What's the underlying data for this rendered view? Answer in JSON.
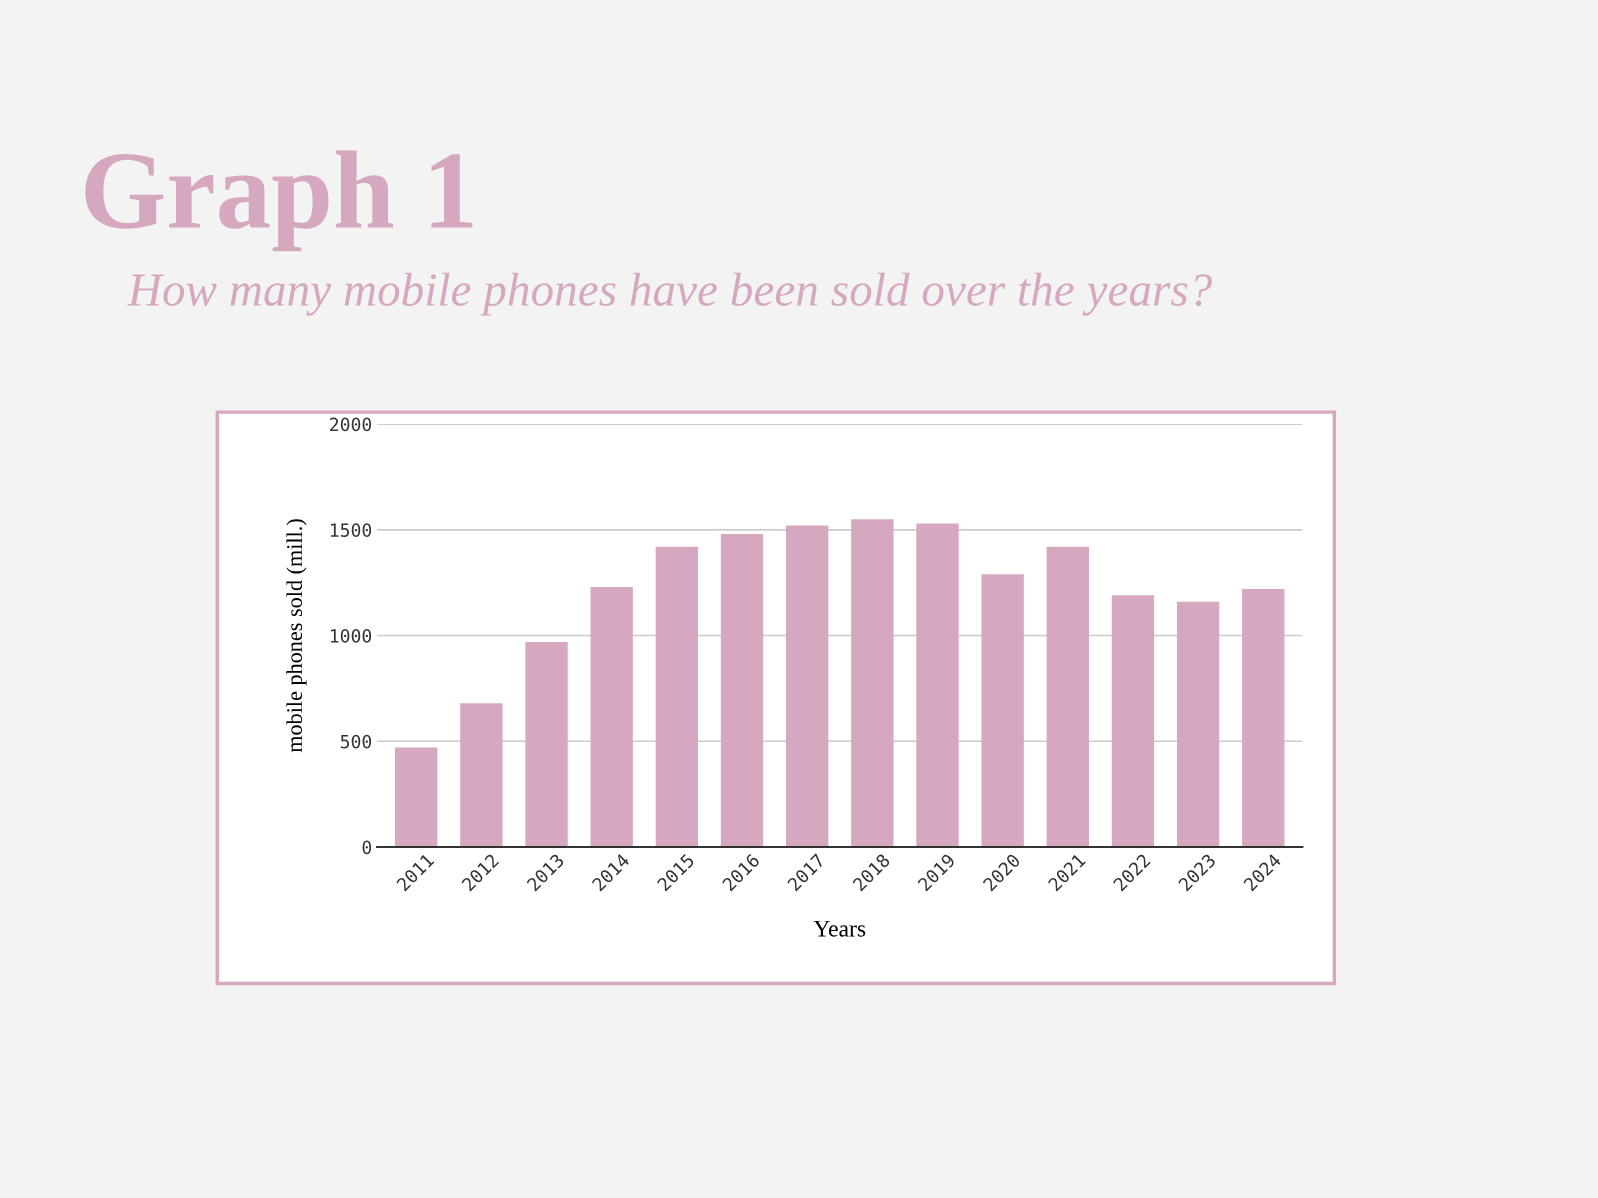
{
  "chart_data": {
    "type": "bar",
    "title": "Graph 1",
    "subtitle": "How many mobile phones have been sold over the years?",
    "xlabel": "Years",
    "ylabel": "mobile phones sold (mill.)",
    "categories": [
      "2011",
      "2012",
      "2013",
      "2014",
      "2015",
      "2016",
      "2017",
      "2018",
      "2019",
      "2020",
      "2021",
      "2022",
      "2023",
      "2024"
    ],
    "values": [
      470,
      680,
      970,
      1230,
      1420,
      1480,
      1520,
      1550,
      1530,
      1290,
      1420,
      1190,
      1160,
      1220
    ],
    "color": "#d5a8bf",
    "ylim": [
      0,
      2000
    ],
    "yticks": [
      0,
      500,
      1000,
      1500,
      2000
    ],
    "grid": "y"
  }
}
